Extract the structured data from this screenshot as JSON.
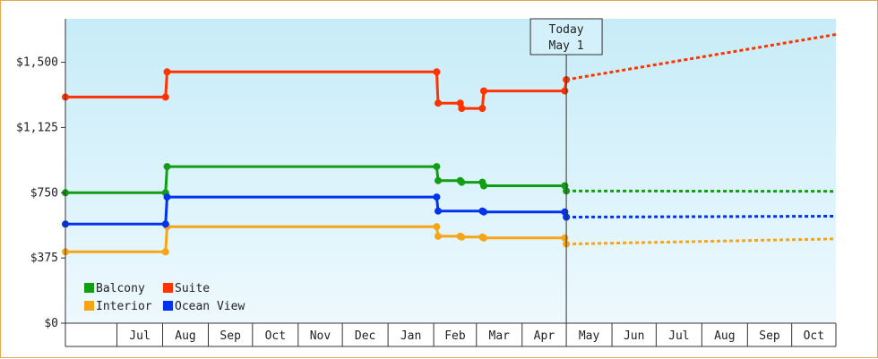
{
  "chart_data": {
    "type": "line",
    "title": "",
    "xlabel": "",
    "ylabel": "",
    "ylim": [
      0,
      1750
    ],
    "y_ticks": [
      {
        "value": 0,
        "label": "$0"
      },
      {
        "value": 375,
        "label": "$375"
      },
      {
        "value": 750,
        "label": "$750"
      },
      {
        "value": 1125,
        "label": "$1,125"
      },
      {
        "value": 1500,
        "label": "$1,500"
      }
    ],
    "x_range": [
      "2023-05-27",
      "2024-10-31"
    ],
    "x_month_ticks": [
      {
        "label": "Jul",
        "date": "2023-07-01",
        "end": "2023-07-31"
      },
      {
        "label": "Aug",
        "date": "2023-08-01",
        "end": "2023-08-31"
      },
      {
        "label": "Sep",
        "date": "2023-09-01",
        "end": "2023-09-30"
      },
      {
        "label": "Oct",
        "date": "2023-10-01",
        "end": "2023-10-31"
      },
      {
        "label": "Nov",
        "date": "2023-11-01",
        "end": "2023-11-30"
      },
      {
        "label": "Dec",
        "date": "2023-12-01",
        "end": "2023-12-31"
      },
      {
        "label": "Jan",
        "date": "2024-01-01",
        "end": "2024-01-31"
      },
      {
        "label": "Feb",
        "date": "2024-02-01",
        "end": "2024-02-29"
      },
      {
        "label": "Mar",
        "date": "2024-03-01",
        "end": "2024-03-31"
      },
      {
        "label": "Apr",
        "date": "2024-04-01",
        "end": "2024-04-30"
      },
      {
        "label": "May",
        "date": "2024-05-01",
        "end": "2024-05-31"
      },
      {
        "label": "Jun",
        "date": "2024-06-01",
        "end": "2024-06-30"
      },
      {
        "label": "Jul",
        "date": "2024-07-01",
        "end": "2024-07-31"
      },
      {
        "label": "Aug",
        "date": "2024-08-01",
        "end": "2024-08-31"
      },
      {
        "label": "Sep",
        "date": "2024-09-01",
        "end": "2024-09-30"
      },
      {
        "label": "Oct",
        "date": "2024-10-01",
        "end": "2024-10-31"
      }
    ],
    "today": {
      "line1": "Today",
      "line2": "May 1",
      "date": "2024-05-01"
    },
    "legend_position": "bottom-left",
    "grid": false,
    "series": [
      {
        "name": "Balcony",
        "color": "#129e12",
        "points": [
          [
            "2023-05-27",
            750
          ],
          [
            "2023-08-03",
            750
          ],
          [
            "2023-08-04",
            900
          ],
          [
            "2024-02-03",
            900
          ],
          [
            "2024-02-04",
            820
          ],
          [
            "2024-02-19",
            820
          ],
          [
            "2024-02-20",
            810
          ],
          [
            "2024-03-05",
            810
          ],
          [
            "2024-03-06",
            790
          ],
          [
            "2024-04-30",
            790
          ],
          [
            "2024-05-01",
            760
          ]
        ],
        "projection": [
          [
            "2024-05-01",
            760
          ],
          [
            "2024-10-31",
            758
          ]
        ]
      },
      {
        "name": "Suite",
        "color": "#ff3300",
        "points": [
          [
            "2023-05-27",
            1300
          ],
          [
            "2023-08-03",
            1300
          ],
          [
            "2023-08-04",
            1445
          ],
          [
            "2024-02-03",
            1445
          ],
          [
            "2024-02-04",
            1265
          ],
          [
            "2024-02-19",
            1265
          ],
          [
            "2024-02-20",
            1235
          ],
          [
            "2024-03-05",
            1235
          ],
          [
            "2024-03-06",
            1335
          ],
          [
            "2024-04-30",
            1335
          ],
          [
            "2024-05-01",
            1400
          ]
        ],
        "projection": [
          [
            "2024-05-01",
            1400
          ],
          [
            "2024-10-31",
            1660
          ]
        ]
      },
      {
        "name": "Interior",
        "color": "#f7a516",
        "points": [
          [
            "2023-05-27",
            410
          ],
          [
            "2023-08-03",
            410
          ],
          [
            "2023-08-04",
            555
          ],
          [
            "2024-02-03",
            555
          ],
          [
            "2024-02-04",
            500
          ],
          [
            "2024-02-19",
            500
          ],
          [
            "2024-02-20",
            495
          ],
          [
            "2024-03-05",
            495
          ],
          [
            "2024-03-06",
            490
          ],
          [
            "2024-04-30",
            490
          ],
          [
            "2024-05-01",
            455
          ]
        ],
        "projection": [
          [
            "2024-05-01",
            455
          ],
          [
            "2024-10-31",
            485
          ]
        ]
      },
      {
        "name": "Ocean View",
        "color": "#0033ee",
        "points": [
          [
            "2023-05-27",
            570
          ],
          [
            "2023-08-03",
            570
          ],
          [
            "2023-08-04",
            725
          ],
          [
            "2024-02-03",
            725
          ],
          [
            "2024-02-04",
            645
          ],
          [
            "2024-03-05",
            645
          ],
          [
            "2024-03-06",
            640
          ],
          [
            "2024-04-30",
            640
          ],
          [
            "2024-05-01",
            610
          ]
        ],
        "projection": [
          [
            "2024-05-01",
            610
          ],
          [
            "2024-10-31",
            615
          ]
        ]
      }
    ]
  }
}
